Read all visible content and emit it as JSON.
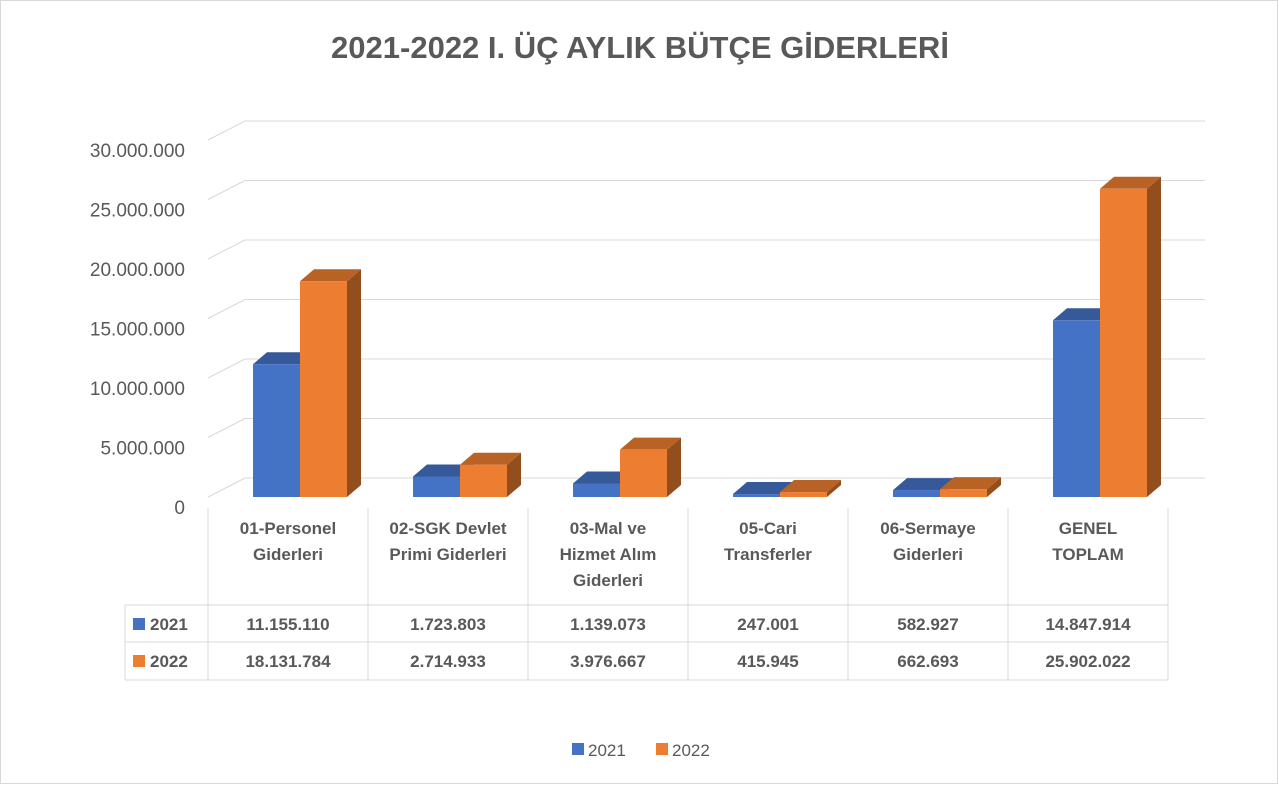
{
  "chart_data": {
    "type": "bar3d",
    "title": "2021-2022 I. ÜÇ AYLIK BÜTÇE GİDERLERİ",
    "categories": [
      "01-Personel Giderleri",
      "02-SGK Devlet Primi Giderleri",
      "03-Mal ve Hizmet Alım Giderleri",
      "05-Cari Transferler",
      "06-Sermaye Giderleri",
      "GENEL TOPLAM"
    ],
    "series": [
      {
        "name": "2021",
        "color": "#4472c4",
        "values": [
          11155110,
          1723803,
          1139073,
          247001,
          582927,
          14847914
        ],
        "value_labels": [
          "11.155.110",
          "1.723.803",
          "1.139.073",
          "247.001",
          "582.927",
          "14.847.914"
        ]
      },
      {
        "name": "2022",
        "color": "#ed7d31",
        "values": [
          18131784,
          2714933,
          3976667,
          415945,
          662693,
          25902022
        ],
        "value_labels": [
          "18.131.784",
          "2.714.933",
          "3.976.667",
          "415.945",
          "662.693",
          "25.902.022"
        ]
      }
    ],
    "ylim": [
      0,
      30000000
    ],
    "yticks": [
      0,
      {
        "value": 5000000,
        "label": "5.000.000"
      },
      {
        "value": 10000000,
        "label": "10.000.000"
      },
      {
        "value": 15000000,
        "label": "15.000.000"
      },
      {
        "value": 20000000,
        "label": "20.000.000"
      },
      {
        "value": 25000000,
        "label": "25.000.000"
      },
      {
        "value": 30000000,
        "label": "30.000.000"
      }
    ],
    "grid": true,
    "legend": "bottom",
    "data_table": true
  }
}
